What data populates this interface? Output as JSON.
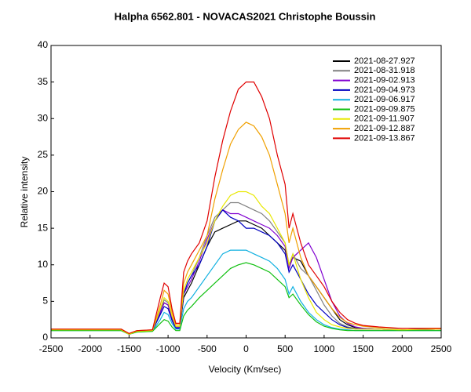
{
  "chart_data": {
    "type": "line",
    "title": "Halpha 6562.801 - NOVACAS2021   Christophe Boussin",
    "x_label": "Velocity (Km/sec)",
    "y_label": "Relative intensity",
    "xlim": [
      -2500,
      2500
    ],
    "ylim": [
      0,
      40
    ],
    "xticks": [
      -2500,
      -2000,
      -1500,
      -1000,
      -500,
      0,
      500,
      1000,
      1500,
      2000,
      2500
    ],
    "yticks": [
      0,
      5,
      10,
      15,
      20,
      25,
      30,
      35,
      40
    ],
    "legend": "upper right",
    "x": [
      -2500,
      -2000,
      -1600,
      -1500,
      -1400,
      -1200,
      -1100,
      -1050,
      -1000,
      -950,
      -900,
      -850,
      -800,
      -750,
      -700,
      -600,
      -500,
      -400,
      -300,
      -200,
      -100,
      0,
      100,
      200,
      300,
      400,
      500,
      550,
      600,
      700,
      800,
      900,
      1000,
      1100,
      1200,
      1300,
      1400,
      1500,
      1700,
      2000,
      2500
    ],
    "series": [
      {
        "name": "2021-08-27.927",
        "color": "#000000",
        "values": [
          1.1,
          1.1,
          1.1,
          0.5,
          0.9,
          1.0,
          3.5,
          4.8,
          4.5,
          2.6,
          1.4,
          1.4,
          5.5,
          6.5,
          7.5,
          10,
          12.5,
          14.5,
          15,
          15.5,
          16,
          16,
          15.5,
          15,
          14,
          13,
          12,
          10,
          11,
          10.5,
          8.5,
          7,
          5.5,
          4,
          2.5,
          1.8,
          1.4,
          1.3,
          1.2,
          1.1,
          1.2
        ]
      },
      {
        "name": "2021-08-31.918",
        "color": "#808080",
        "values": [
          1.1,
          1.1,
          1.1,
          0.5,
          0.9,
          1.0,
          3.8,
          5.2,
          4.8,
          2.8,
          1.5,
          1.5,
          6,
          7.5,
          8.5,
          11,
          14,
          16.5,
          17.5,
          18.5,
          18.5,
          18,
          17.5,
          17,
          16,
          14.5,
          13,
          10,
          11.5,
          9.5,
          8.5,
          6.5,
          4.5,
          3,
          2,
          1.5,
          1.3,
          1.2,
          1.2,
          1.1,
          1.2
        ]
      },
      {
        "name": "2021-09-02.913",
        "color": "#8000d0",
        "values": [
          1.1,
          1.1,
          1.1,
          0.5,
          0.9,
          1.0,
          3.5,
          4.8,
          4.5,
          2.6,
          1.4,
          1.4,
          6,
          7,
          8,
          10.5,
          13.5,
          16,
          17.5,
          17,
          17,
          16.5,
          16,
          15.5,
          15,
          14,
          12.5,
          9.5,
          11,
          12,
          13,
          11,
          8,
          5,
          3,
          2,
          1.5,
          1.3,
          1.2,
          1.1,
          1.2
        ]
      },
      {
        "name": "2021-09-04.973",
        "color": "#0000c0",
        "values": [
          1.1,
          1.1,
          1.1,
          0.5,
          0.9,
          1.0,
          3.2,
          4.3,
          4.0,
          2.4,
          1.3,
          1.3,
          6,
          7.5,
          8.5,
          10,
          12.5,
          16,
          17.5,
          16.5,
          16,
          15,
          15,
          14.5,
          14,
          13,
          11.5,
          9,
          10,
          8,
          6,
          4.5,
          3.5,
          2.5,
          1.8,
          1.4,
          1.2,
          1.2,
          1.2,
          1.1,
          1.2
        ]
      },
      {
        "name": "2021-09-06.917",
        "color": "#10b0e0",
        "values": [
          1.0,
          1.0,
          1.0,
          0.5,
          0.8,
          0.9,
          2.5,
          3.5,
          3.2,
          2,
          1.2,
          1.2,
          4,
          5,
          5.5,
          7,
          8.5,
          10,
          11.5,
          12,
          12,
          12,
          11.5,
          11,
          10.5,
          9.5,
          8,
          6,
          7,
          5,
          3.5,
          2.5,
          1.8,
          1.4,
          1.2,
          1.1,
          1.0,
          1.0,
          1.0,
          1.0,
          1.0
        ]
      },
      {
        "name": "2021-09-09.875",
        "color": "#10c010",
        "values": [
          1.0,
          1.0,
          1.0,
          0.5,
          0.8,
          0.9,
          2.0,
          2.5,
          2.3,
          1.5,
          1.0,
          1.0,
          3,
          3.8,
          4.3,
          5.5,
          6.5,
          7.5,
          8.5,
          9.5,
          10,
          10.3,
          10,
          9.5,
          9,
          8,
          7,
          5.5,
          6,
          4.5,
          3.2,
          2.2,
          1.6,
          1.3,
          1.1,
          1.0,
          1.0,
          1.0,
          1.0,
          1.0,
          1.0
        ]
      },
      {
        "name": "2021-09-11.907",
        "color": "#e8e800",
        "values": [
          1.1,
          1.1,
          1.1,
          0.5,
          0.9,
          1.0,
          4,
          5.5,
          5.0,
          3,
          1.6,
          1.6,
          6.5,
          8,
          9,
          11,
          13,
          16,
          18,
          19.5,
          20,
          20,
          19.5,
          18,
          17,
          15,
          13,
          10,
          11.5,
          8,
          5.5,
          3.5,
          2.5,
          1.8,
          1.5,
          1.3,
          1.2,
          1.2,
          1.2,
          1.1,
          1.2
        ]
      },
      {
        "name": "2021-09-12.887",
        "color": "#f0a000",
        "values": [
          1.2,
          1.2,
          1.2,
          0.6,
          1.0,
          1.1,
          4.5,
          6.5,
          6.0,
          3.5,
          1.8,
          1.8,
          7.5,
          9,
          10,
          12,
          14,
          19,
          23,
          26.5,
          28.5,
          29.5,
          29,
          27.5,
          25,
          21,
          17,
          13,
          15,
          11,
          8.5,
          7,
          5.5,
          4,
          2.8,
          2.1,
          1.8,
          1.6,
          1.4,
          1.3,
          1.3
        ]
      },
      {
        "name": "2021-09-13.867",
        "color": "#e00000",
        "values": [
          1.2,
          1.2,
          1.2,
          0.6,
          1.0,
          1.1,
          5.5,
          7.5,
          7.0,
          4.0,
          2.0,
          2.0,
          9.0,
          10.5,
          11.5,
          13,
          16,
          22,
          27,
          31,
          34,
          35,
          35,
          33,
          30,
          25,
          21,
          15,
          17,
          13,
          10,
          8.5,
          7,
          5,
          3.5,
          2.5,
          2,
          1.7,
          1.5,
          1.3,
          1.3
        ]
      }
    ]
  }
}
